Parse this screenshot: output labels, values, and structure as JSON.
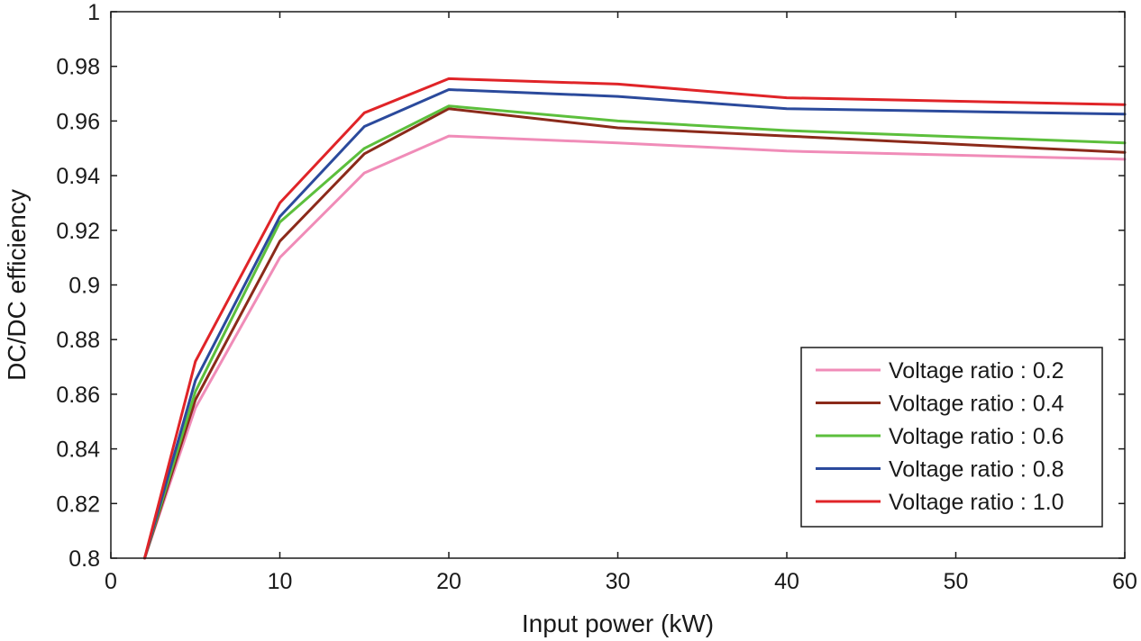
{
  "chart_data": {
    "type": "line",
    "title": "",
    "xlabel": "Input power (kW)",
    "ylabel": "DC/DC efficiency",
    "xlim": [
      0,
      60
    ],
    "ylim": [
      0.8,
      1.0
    ],
    "grid": false,
    "legend_position": "bottom-right",
    "x": [
      2,
      5,
      10,
      15,
      20,
      30,
      40,
      60
    ],
    "xticks": [
      0,
      10,
      20,
      30,
      40,
      50,
      60
    ],
    "xtick_labels": [
      "0",
      "10",
      "20",
      "30",
      "40",
      "50",
      "60"
    ],
    "yticks": [
      0.8,
      0.82,
      0.84,
      0.86,
      0.88,
      0.9,
      0.92,
      0.94,
      0.96,
      0.98,
      1.0
    ],
    "ytick_labels": [
      "0.8",
      "0.82",
      "0.84",
      "0.86",
      "0.88",
      "0.9",
      "0.92",
      "0.94",
      "0.96",
      "0.98",
      "1"
    ],
    "series": [
      {
        "name": "Voltage ratio : 0.2",
        "color": "#f08cb8",
        "values": [
          0.8,
          0.855,
          0.91,
          0.941,
          0.9545,
          0.952,
          0.949,
          0.946
        ]
      },
      {
        "name": "Voltage ratio : 0.4",
        "color": "#8b2a1a",
        "values": [
          0.8,
          0.858,
          0.916,
          0.948,
          0.9645,
          0.9575,
          0.9545,
          0.9485
        ]
      },
      {
        "name": "Voltage ratio : 0.6",
        "color": "#5cbf3c",
        "values": [
          0.8,
          0.861,
          0.923,
          0.95,
          0.9655,
          0.96,
          0.9565,
          0.952
        ]
      },
      {
        "name": "Voltage ratio : 0.8",
        "color": "#2b4a9c",
        "values": [
          0.8,
          0.865,
          0.925,
          0.958,
          0.9715,
          0.969,
          0.9645,
          0.9625
        ]
      },
      {
        "name": "Voltage ratio : 1.0",
        "color": "#e02428",
        "values": [
          0.8,
          0.872,
          0.93,
          0.963,
          0.9755,
          0.9735,
          0.9685,
          0.966
        ]
      }
    ]
  }
}
